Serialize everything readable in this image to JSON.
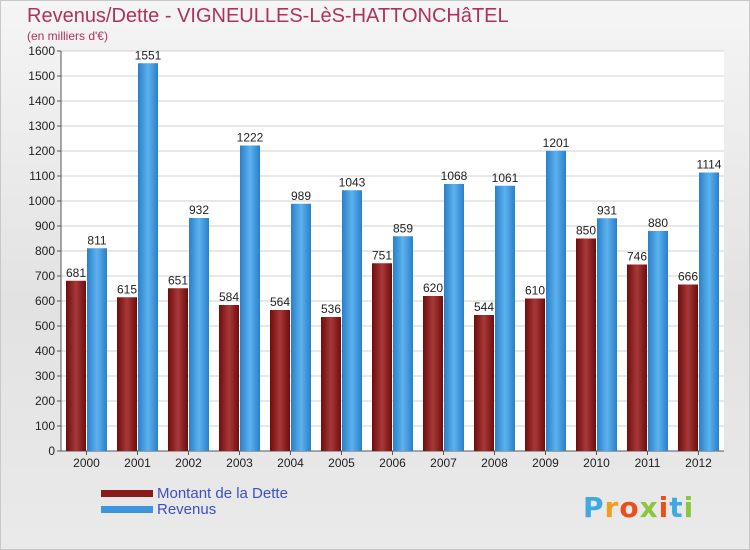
{
  "chart_data": {
    "type": "bar",
    "title": "Revenus/Dette - VIGNEULLES-LèS-HATTONCHâTEL",
    "subtitle": "(en milliers d'€)",
    "categories": [
      "2000",
      "2001",
      "2002",
      "2003",
      "2004",
      "2005",
      "2006",
      "2007",
      "2008",
      "2009",
      "2010",
      "2011",
      "2012"
    ],
    "series": [
      {
        "name": "Montant de la Dette",
        "values": [
          681,
          615,
          651,
          584,
          564,
          536,
          751,
          620,
          544,
          610,
          850,
          746,
          666
        ],
        "color": "#8b1a1a"
      },
      {
        "name": "Revenus",
        "values": [
          811,
          1551,
          932,
          1222,
          989,
          1043,
          859,
          1068,
          1061,
          1201,
          931,
          880,
          1114
        ],
        "color": "#3d96dd"
      }
    ],
    "ylim": [
      0,
      1600
    ],
    "yticks": [
      0,
      100,
      200,
      300,
      400,
      500,
      600,
      700,
      800,
      900,
      1000,
      1100,
      1200,
      1300,
      1400,
      1500,
      1600
    ],
    "grid": true,
    "legend_position": "bottom-left"
  },
  "brand": {
    "letters": [
      "P",
      "r",
      "o",
      "x",
      "i",
      "t",
      "i"
    ],
    "colors": [
      "#3fa9e0",
      "#f0a020",
      "#e94e1b",
      "#8cc63f",
      "#e94e1b",
      "#3fa9e0",
      "#8cc63f"
    ]
  }
}
